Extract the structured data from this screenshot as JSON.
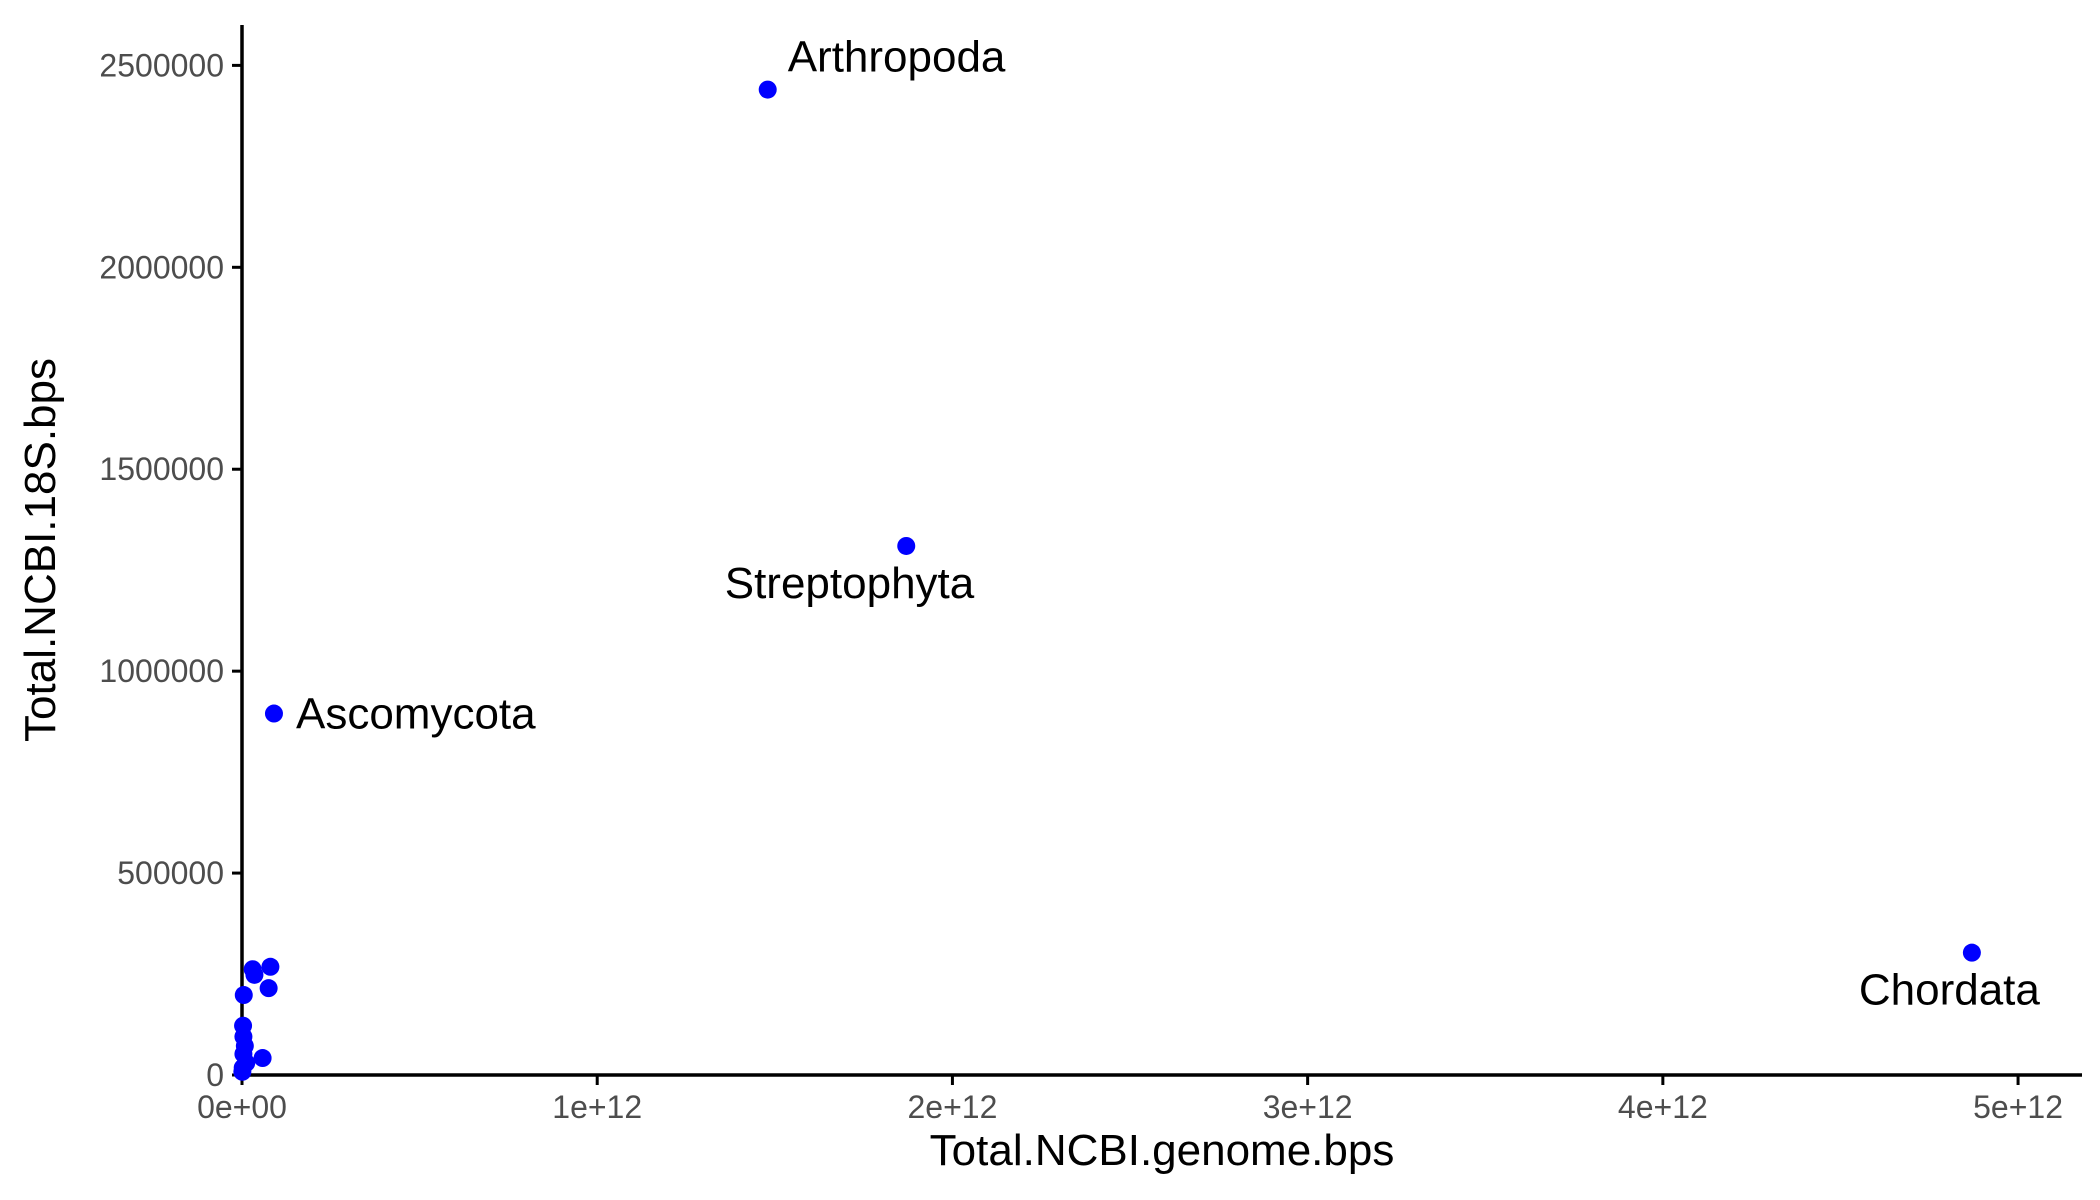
{
  "chart_data": {
    "type": "scatter",
    "title": "",
    "xlabel": "Total.NCBI.genome.bps",
    "ylabel": "Total.NCBI.18S.bps",
    "xlim": [
      0,
      5180000000000.0
    ],
    "ylim": [
      0,
      2600000.0
    ],
    "x_ticks": [
      {
        "value": 0,
        "label": "0e+00"
      },
      {
        "value": 1000000000000.0,
        "label": "1e+12"
      },
      {
        "value": 2000000000000.0,
        "label": "2e+12"
      },
      {
        "value": 3000000000000.0,
        "label": "3e+12"
      },
      {
        "value": 4000000000000.0,
        "label": "4e+12"
      },
      {
        "value": 5000000000000.0,
        "label": "5e+12"
      }
    ],
    "y_ticks": [
      {
        "value": 0,
        "label": "0"
      },
      {
        "value": 500000,
        "label": "500000"
      },
      {
        "value": 1000000,
        "label": "1000000"
      },
      {
        "value": 1500000,
        "label": "1500000"
      },
      {
        "value": 2000000,
        "label": "2000000"
      },
      {
        "value": 2500000,
        "label": "2500000"
      }
    ],
    "grid": false,
    "point_color": "#0000ff",
    "points": [
      {
        "x": 1480000000000.0,
        "y": 2440000,
        "label": "Arthropoda",
        "label_pos": "above-right"
      },
      {
        "x": 1870000000000.0,
        "y": 1310000,
        "label": "Streptophyta",
        "label_pos": "below-left"
      },
      {
        "x": 90000000000.0,
        "y": 895000,
        "label": "Ascomycota",
        "label_pos": "right"
      },
      {
        "x": 4870000000000.0,
        "y": 303000,
        "label": "Chordata",
        "label_pos": "below-left"
      },
      {
        "x": 80000000000.0,
        "y": 268000,
        "label": ""
      },
      {
        "x": 30000000000.0,
        "y": 262000,
        "label": ""
      },
      {
        "x": 35000000000.0,
        "y": 248000,
        "label": ""
      },
      {
        "x": 75000000000.0,
        "y": 215000,
        "label": ""
      },
      {
        "x": 5000000000.0,
        "y": 198000,
        "label": ""
      },
      {
        "x": 3000000000.0,
        "y": 122000,
        "label": ""
      },
      {
        "x": 4000000000.0,
        "y": 95000,
        "label": ""
      },
      {
        "x": 8000000000.0,
        "y": 72000,
        "label": ""
      },
      {
        "x": 4000000000.0,
        "y": 52000,
        "label": ""
      },
      {
        "x": 58000000000.0,
        "y": 42000,
        "label": ""
      },
      {
        "x": 12000000000.0,
        "y": 30000,
        "label": ""
      },
      {
        "x": 2000000000.0,
        "y": 18000,
        "label": ""
      },
      {
        "x": 1000000000.0,
        "y": 8000,
        "label": ""
      }
    ]
  }
}
